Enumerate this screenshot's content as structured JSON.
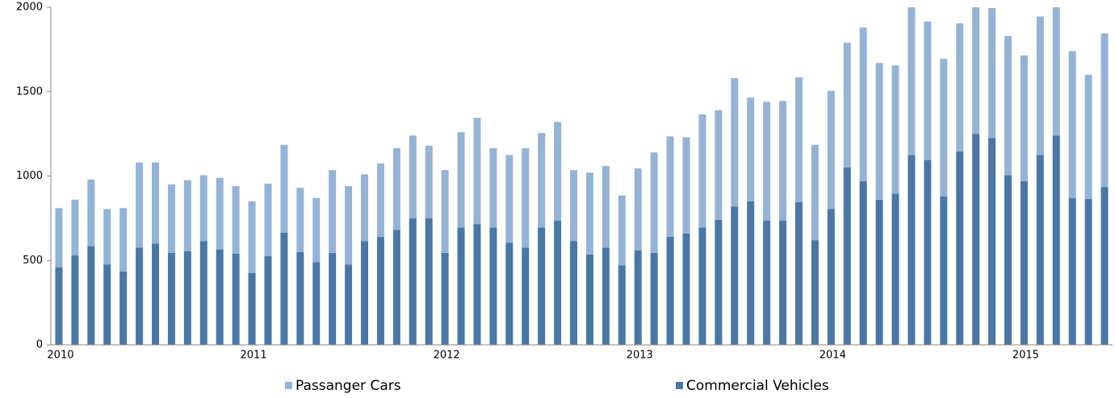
{
  "chart_data": {
    "type": "stacked_bar",
    "categories": [
      "2010",
      null,
      null,
      null,
      null,
      null,
      null,
      null,
      null,
      null,
      null,
      null,
      "2011",
      null,
      null,
      null,
      null,
      null,
      null,
      null,
      null,
      null,
      null,
      null,
      "2012",
      null,
      null,
      null,
      null,
      null,
      null,
      null,
      null,
      null,
      null,
      null,
      "2013",
      null,
      null,
      null,
      null,
      null,
      null,
      null,
      null,
      null,
      null,
      null,
      "2014",
      null,
      null,
      null,
      null,
      null,
      null,
      null,
      null,
      null,
      null,
      null,
      "2015",
      null,
      null,
      null,
      null,
      null
    ],
    "series": [
      {
        "name": "Commercial Vehicles",
        "color": "#4a76a8",
        "values": [
          460,
          530,
          585,
          475,
          435,
          575,
          600,
          545,
          555,
          615,
          565,
          540,
          425,
          525,
          665,
          550,
          490,
          545,
          475,
          615,
          640,
          680,
          750,
          750,
          545,
          695,
          715,
          695,
          605,
          575,
          695,
          735,
          615,
          535,
          575,
          470,
          560,
          545,
          640,
          660,
          695,
          740,
          820,
          850,
          735,
          735,
          845,
          620,
          805,
          1050,
          970,
          860,
          895,
          1125,
          1095,
          880,
          1145,
          1250,
          1225,
          1005,
          970,
          1125,
          1240,
          870,
          865,
          935
        ]
      },
      {
        "name": "Passanger Cars",
        "color": "#95b3d7",
        "values": [
          350,
          330,
          395,
          330,
          375,
          505,
          480,
          405,
          420,
          390,
          425,
          400,
          425,
          430,
          520,
          380,
          380,
          490,
          465,
          395,
          435,
          485,
          490,
          430,
          490,
          565,
          630,
          470,
          520,
          590,
          560,
          585,
          420,
          485,
          485,
          415,
          485,
          595,
          595,
          570,
          670,
          650,
          760,
          615,
          705,
          710,
          740,
          565,
          700,
          740,
          910,
          810,
          760,
          875,
          820,
          815,
          760,
          750,
          770,
          825,
          745,
          820,
          760,
          870,
          735,
          910
        ]
      }
    ],
    "ylim": [
      0,
      2000
    ],
    "yticks": [
      0,
      500,
      1000,
      1500,
      2000
    ],
    "grid": false,
    "legend": "bottom"
  }
}
